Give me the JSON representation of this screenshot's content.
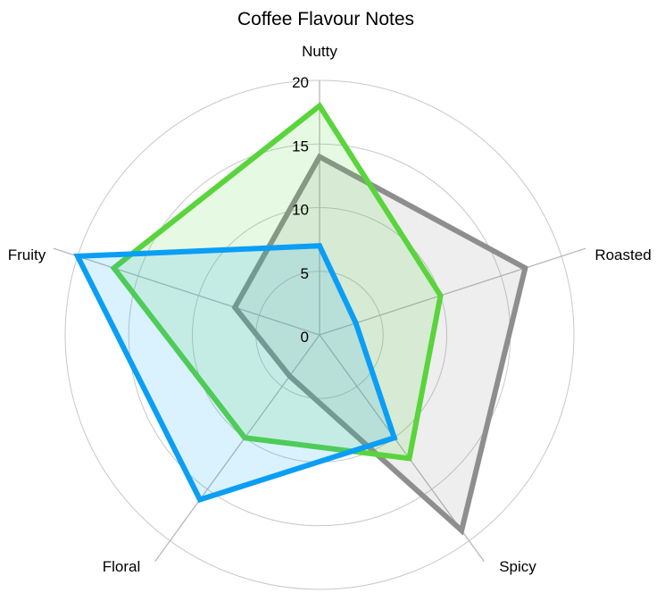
{
  "chart_data": {
    "type": "radar",
    "title": "Coffee Flavour Notes",
    "axes": [
      "Nutty",
      "Roasted",
      "Spicy",
      "Floral",
      "Fruity"
    ],
    "rlim": [
      0,
      20
    ],
    "ticks": [
      "0",
      "5",
      "10",
      "15",
      "20"
    ],
    "tick_values": [
      0,
      5,
      10,
      15,
      20
    ],
    "grid": true,
    "series": [
      {
        "values": [
          14,
          17,
          19,
          4,
          7
        ],
        "color": "#8e8e8e"
      },
      {
        "values": [
          18,
          10,
          12,
          10,
          17
        ],
        "color": "#5ad43c"
      },
      {
        "values": [
          7,
          3,
          10,
          16,
          20
        ],
        "color": "#0a9ef5"
      }
    ]
  }
}
